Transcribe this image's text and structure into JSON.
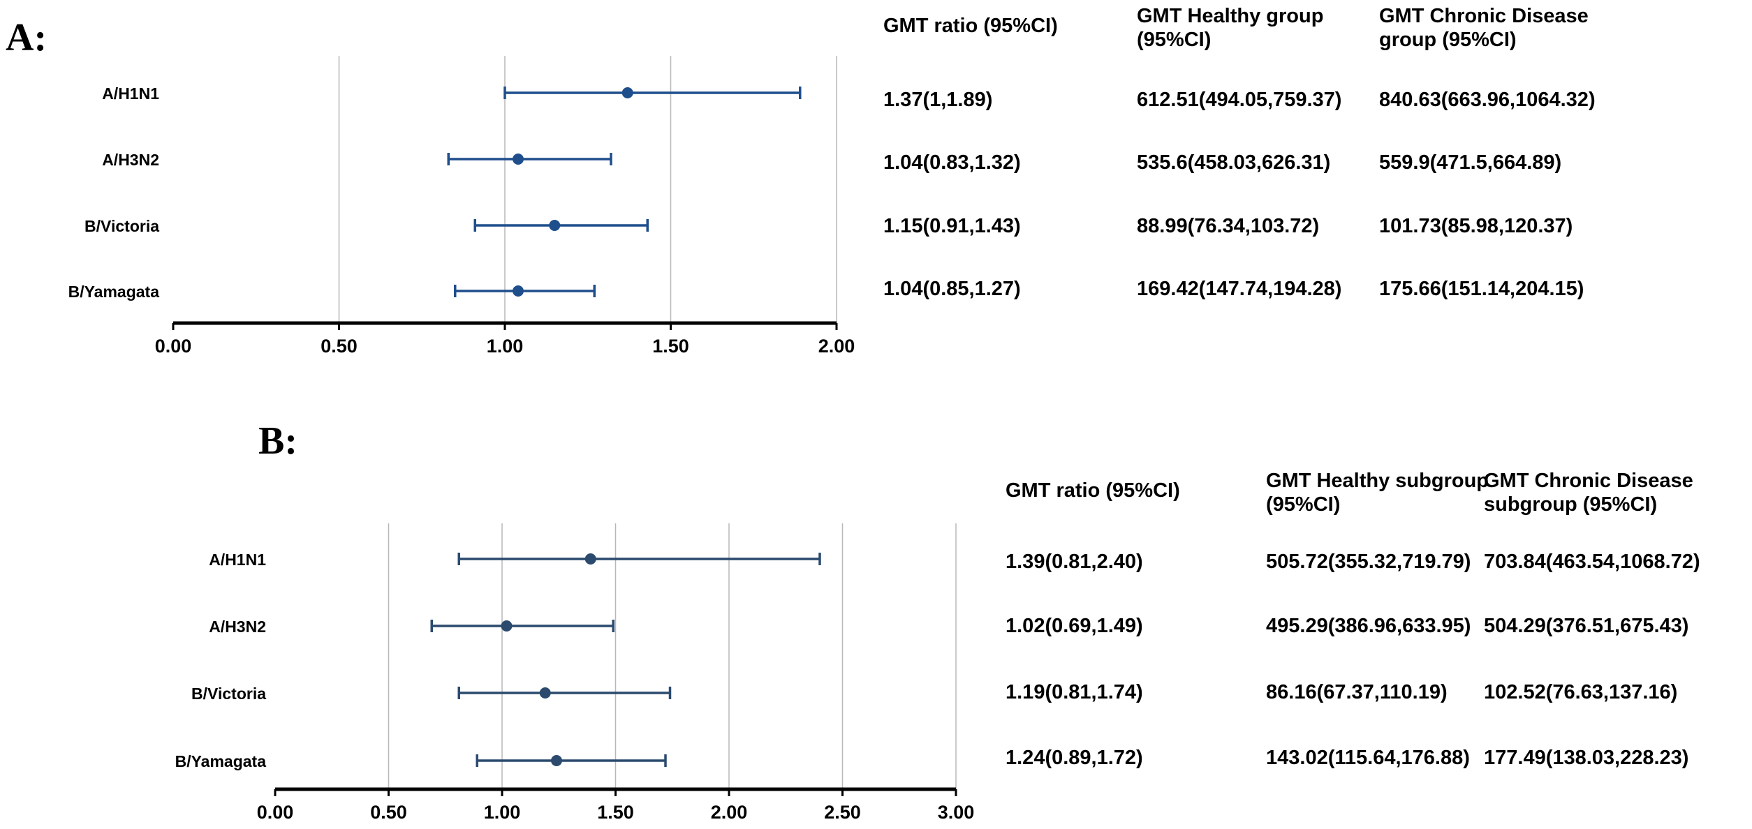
{
  "chart_data": [
    {
      "type": "forest",
      "panel_label": "A:",
      "categories": [
        "A/H1N1",
        "A/H3N2",
        "B/Victoria",
        "B/Yamagata"
      ],
      "estimates": [
        1.37,
        1.04,
        1.15,
        1.04
      ],
      "lower": [
        1.0,
        0.83,
        0.91,
        0.85
      ],
      "upper": [
        1.89,
        1.32,
        1.43,
        1.27
      ],
      "xlim": [
        0,
        2
      ],
      "xticks": [
        "0.00",
        "0.50",
        "1.00",
        "1.50",
        "2.00"
      ],
      "grid": true,
      "color": "#1f4e8c",
      "table": {
        "headers": [
          "GMT ratio (95%CI)",
          "GMT Healthy group\n(95%CI)",
          "GMT Chronic Disease\ngroup (95%CI)"
        ],
        "rows": [
          [
            "1.37(1,1.89)",
            "612.51(494.05,759.37)",
            "840.63(663.96,1064.32)"
          ],
          [
            "1.04(0.83,1.32)",
            "535.6(458.03,626.31)",
            "559.9(471.5,664.89)"
          ],
          [
            "1.15(0.91,1.43)",
            "88.99(76.34,103.72)",
            "101.73(85.98,120.37)"
          ],
          [
            "1.04(0.85,1.27)",
            "169.42(147.74,194.28)",
            "175.66(151.14,204.15)"
          ]
        ]
      }
    },
    {
      "type": "forest",
      "panel_label": "B:",
      "categories": [
        "A/H1N1",
        "A/H3N2",
        "B/Victoria",
        "B/Yamagata"
      ],
      "estimates": [
        1.39,
        1.02,
        1.19,
        1.24
      ],
      "lower": [
        0.81,
        0.69,
        0.81,
        0.89
      ],
      "upper": [
        2.4,
        1.49,
        1.74,
        1.72
      ],
      "xlim": [
        0,
        3
      ],
      "xticks": [
        "0.00",
        "0.50",
        "1.00",
        "1.50",
        "2.00",
        "2.50",
        "3.00"
      ],
      "grid": true,
      "color": "#2b4a6e",
      "table": {
        "headers": [
          "GMT ratio (95%CI)",
          "GMT Healthy subgroup\n(95%CI)",
          "GMT Chronic Disease\nsubgroup (95%CI)"
        ],
        "rows": [
          [
            "1.39(0.81,2.40)",
            "505.72(355.32,719.79)",
            "703.84(463.54,1068.72)"
          ],
          [
            "1.02(0.69,1.49)",
            "495.29(386.96,633.95)",
            "504.29(376.51,675.43)"
          ],
          [
            "1.19(0.81,1.74)",
            "86.16(67.37,110.19)",
            "102.52(76.63,137.16)"
          ],
          [
            "1.24(0.89,1.72)",
            "143.02(115.64,176.88)",
            "177.49(138.03,228.23)"
          ]
        ]
      }
    }
  ]
}
